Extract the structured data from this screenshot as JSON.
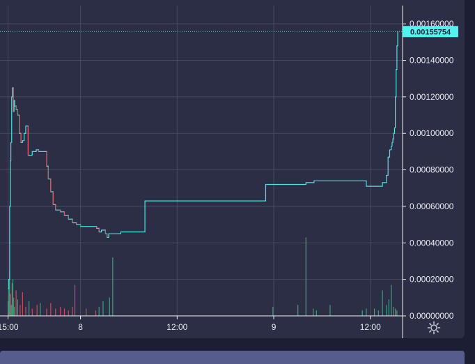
{
  "chart_data": {
    "type": "line",
    "title": "",
    "xlabel": "",
    "ylabel": "",
    "y_axis_position": "right",
    "y_ticks": [
      "0.00160000",
      "0.00140000",
      "0.00120000",
      "0.00100000",
      "0.00080000",
      "0.00060000",
      "0.00040000",
      "0.00020000",
      "0.00000000"
    ],
    "y_tick_values": [
      0.0016,
      0.0014,
      0.0012,
      0.001,
      0.0008,
      0.0006,
      0.0004,
      0.0002,
      0.0
    ],
    "ylim": [
      0.0,
      0.0017
    ],
    "x_ticks": [
      "15:00",
      "8",
      "12:00",
      "9",
      "12:00"
    ],
    "x_tick_hours": [
      15,
      24,
      36,
      48,
      60
    ],
    "xlim": [
      14.0,
      64.0
    ],
    "last_price_label": "0.00155754",
    "last_price": 0.00155754,
    "grid": true,
    "colors": {
      "line": "#4fe3e0",
      "up_volume": "#3fb58a",
      "down_volume": "#e0535f",
      "grid": "#454a63",
      "price_tag": "#54f2ef"
    },
    "series": [
      {
        "values_x_hours": [
          15.0,
          15.1,
          15.2,
          15.3,
          15.35,
          15.45,
          15.55,
          15.65,
          15.75,
          15.85,
          16.0,
          16.2,
          16.4,
          16.6,
          16.8,
          17.0,
          17.2,
          17.5,
          18.0,
          18.5,
          18.8,
          19.0,
          19.3,
          19.6,
          19.8,
          20.0,
          20.3,
          20.6,
          20.9,
          21.2,
          21.5,
          22.0,
          22.5,
          23.0,
          23.5,
          24.0,
          24.5,
          25.0,
          25.5,
          26.0,
          26.3,
          26.6,
          26.9,
          27.1,
          27.3,
          27.5,
          29.0,
          32.0,
          36.0,
          40.0,
          44.0,
          45.0,
          46.0,
          46.9,
          47.0,
          47.5,
          48.0,
          50.0,
          52.0,
          52.9,
          53.0,
          54.0,
          56.0,
          58.0,
          59.0,
          59.5,
          60.0,
          61.0,
          61.5,
          62.0,
          62.2,
          62.4,
          62.6,
          62.7,
          62.8,
          62.9,
          63.0,
          63.1,
          63.2,
          63.3,
          63.4
        ],
        "values": [
          0.00015,
          0.0002,
          0.0006,
          0.00085,
          0.00095,
          0.0012,
          0.00125,
          0.00112,
          0.00118,
          0.00115,
          0.00113,
          0.0011,
          0.001,
          0.00095,
          0.00096,
          0.001,
          0.00104,
          0.00088,
          0.0009,
          0.00091,
          0.0009,
          0.0009,
          0.0009,
          0.0009,
          0.00082,
          0.00075,
          0.00068,
          0.00061,
          0.00058,
          0.00058,
          0.00057,
          0.00055,
          0.00053,
          0.00051,
          0.0005,
          0.00049,
          0.00049,
          0.00049,
          0.00049,
          0.00048,
          0.00046,
          0.00047,
          0.00047,
          0.00045,
          0.00043,
          0.00045,
          0.00046,
          0.00063,
          0.00063,
          0.00063,
          0.00063,
          0.00063,
          0.00063,
          0.00063,
          0.00072,
          0.00072,
          0.00072,
          0.00072,
          0.00073,
          0.00073,
          0.00074,
          0.00074,
          0.00074,
          0.00074,
          0.00074,
          0.00071,
          0.00071,
          0.00071,
          0.00073,
          0.00077,
          0.00087,
          0.00091,
          0.00093,
          0.00095,
          0.00097,
          0.001,
          0.00103,
          0.0012,
          0.00135,
          0.00148,
          0.00155754
        ]
      }
    ],
    "volume": {
      "x_hours": [
        15.0,
        15.1,
        15.2,
        15.3,
        15.4,
        15.5,
        15.6,
        15.7,
        15.8,
        16.0,
        16.2,
        16.5,
        16.8,
        17.2,
        17.6,
        18.0,
        18.6,
        19.0,
        19.8,
        20.3,
        20.9,
        21.5,
        22.0,
        22.5,
        23.0,
        23.3,
        24.7,
        25.9,
        26.3,
        26.8,
        27.6,
        28.0,
        47.9,
        51.0,
        52.0,
        52.9,
        53.3,
        55.0,
        59.0,
        59.5,
        60.5,
        61.0,
        61.5,
        62.0,
        62.3,
        62.6,
        62.9,
        63.1,
        63.3
      ],
      "values": [
        8e-05,
        0.00015,
        0.00025,
        0.00012,
        6e-05,
        0.00018,
        0.0002,
        0.0001,
        5e-05,
        0.00014,
        9e-05,
        6e-05,
        0.00013,
        5e-05,
        8e-05,
        4e-05,
        6e-05,
        7e-05,
        4e-05,
        7e-05,
        4e-05,
        5e-05,
        4e-05,
        3e-05,
        5e-05,
        0.00017,
        4e-05,
        3e-05,
        5e-05,
        8e-05,
        0.0001,
        0.00032,
        5e-05,
        6e-05,
        0.00043,
        4e-05,
        3e-05,
        6e-05,
        3e-05,
        4e-05,
        4e-05,
        3e-05,
        0.00014,
        6e-05,
        9e-05,
        0.00017,
        5e-05,
        4e-05,
        3e-05
      ],
      "direction": [
        "up",
        "up",
        "up",
        "down",
        "up",
        "down",
        "up",
        "down",
        "up",
        "down",
        "up",
        "down",
        "down",
        "down",
        "up",
        "down",
        "down",
        "up",
        "down",
        "down",
        "down",
        "down",
        "down",
        "down",
        "down",
        "down",
        "down",
        "down",
        "up",
        "up",
        "up",
        "up",
        "up",
        "up",
        "up",
        "up",
        "up",
        "up",
        "up",
        "up",
        "up",
        "up",
        "up",
        "up",
        "up",
        "up",
        "up",
        "up",
        "up"
      ]
    }
  },
  "ui": {
    "settings_icon": "gear-icon"
  }
}
